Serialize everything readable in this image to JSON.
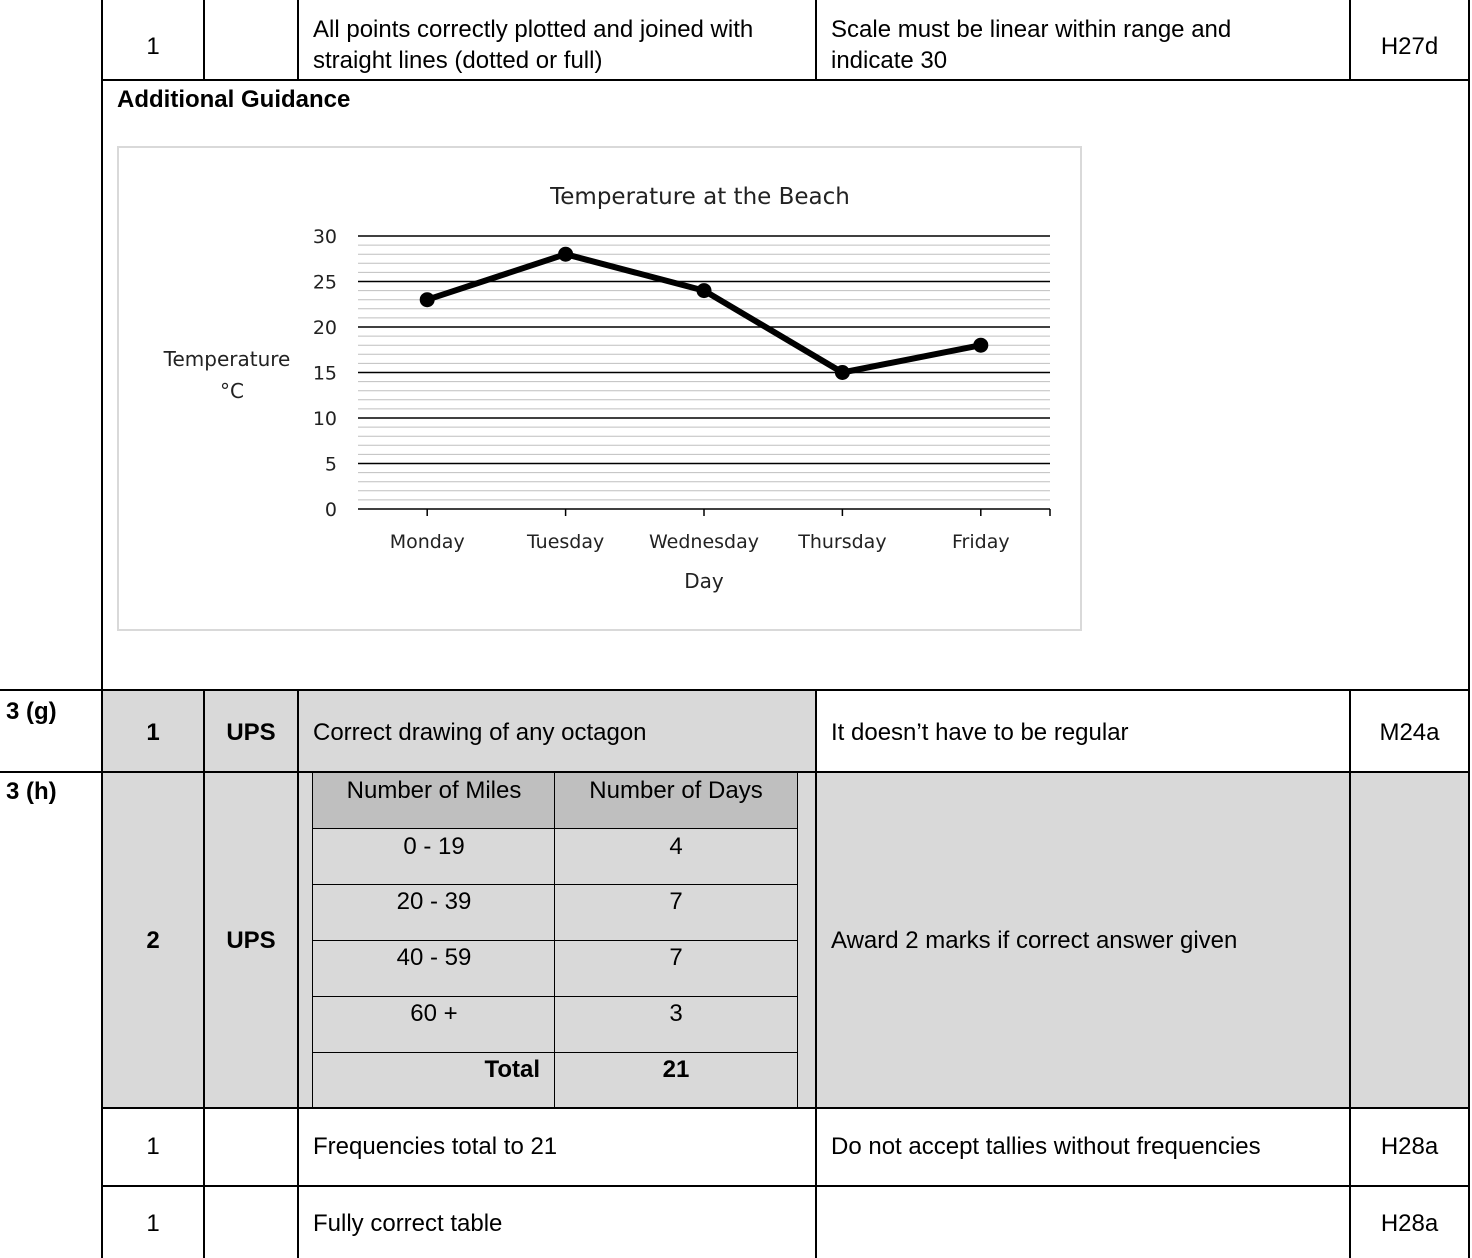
{
  "rows": {
    "r1": {
      "mark": "1",
      "answer_line1": "All points correctly plotted and joined with",
      "answer_line2": "straight lines (dotted or full)",
      "notes_line1": "Scale must be linear within range and",
      "notes_line2": "indicate 30",
      "code": "H27d"
    },
    "additional_guidance_title": "Additional Guidance",
    "g": {
      "question": "3 (g)",
      "mark": "1",
      "type": "UPS",
      "answer": "Correct drawing of any octagon",
      "notes": "It doesn’t have to be regular",
      "code": "M24a"
    },
    "h": {
      "question": "3 (h)",
      "mark": "2",
      "type": "UPS",
      "notes": "Award 2 marks if correct answer given"
    },
    "h2": {
      "mark": "1",
      "answer": "Frequencies total to 21",
      "notes": "Do not accept tallies without frequencies",
      "code": "H28a"
    },
    "h3": {
      "mark": "1",
      "answer": "Fully correct table",
      "code": "H28a"
    }
  },
  "freq_table": {
    "headers": [
      "Number of Miles",
      "Number of Days"
    ],
    "rows": [
      [
        "0 - 19",
        "4"
      ],
      [
        "20 - 39",
        "7"
      ],
      [
        "40 - 59",
        "7"
      ],
      [
        "60 +",
        "3"
      ]
    ],
    "total_label": "Total",
    "total_value": "21"
  },
  "chart_data": {
    "type": "line",
    "title": "Temperature at the Beach",
    "xlabel": "Day",
    "ylabel_line1": "Temperature",
    "ylabel_line2": "°C",
    "categories": [
      "Monday",
      "Tuesday",
      "Wednesday",
      "Thursday",
      "Friday"
    ],
    "values": [
      23,
      28,
      24,
      15,
      18
    ],
    "ylim": [
      0,
      30
    ],
    "yticks": [
      "0",
      "5",
      "10",
      "15",
      "20",
      "25",
      "30"
    ],
    "major_step": 5,
    "minor_step": 1,
    "grid": true
  }
}
